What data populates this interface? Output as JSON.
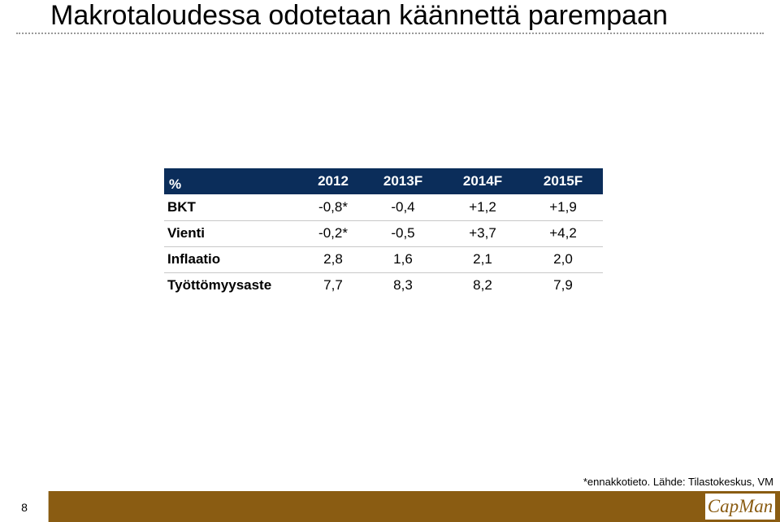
{
  "slide": {
    "title": "Makrotaloudessa odotetaan käännettä parempaan",
    "page_number": "8",
    "footnote": "*ennakkotieto. Lähde: Tilastokeskus, VM",
    "logo_text": "CapMan"
  },
  "table": {
    "corner": "%",
    "columns": [
      "2012",
      "2013F",
      "2014F",
      "2015F"
    ],
    "rows": [
      {
        "label": "BKT",
        "values": [
          "-0,8*",
          "-0,4",
          "+1,2",
          "+1,9"
        ]
      },
      {
        "label": "Vienti",
        "values": [
          "-0,2*",
          "-0,5",
          "+3,7",
          "+4,2"
        ]
      },
      {
        "label": "Inflaatio",
        "values": [
          "2,8",
          "1,6",
          "2,1",
          "2,0"
        ]
      },
      {
        "label": "Työttömyysaste",
        "values": [
          "7,7",
          "8,3",
          "8,2",
          "7,9"
        ]
      }
    ]
  },
  "colors": {
    "table_header": "#0b2d5a",
    "footer_bar": "#8a5c12"
  }
}
